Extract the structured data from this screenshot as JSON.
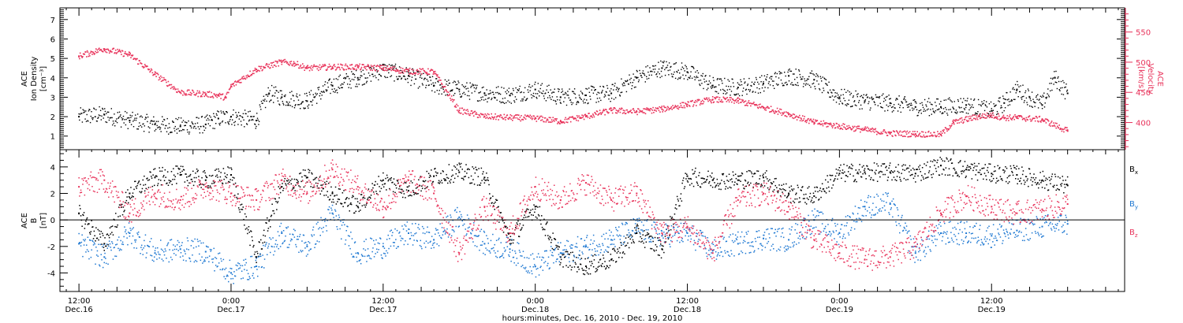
{
  "colors": {
    "density": "#000000",
    "velocity": "#e8325a",
    "bx": "#000000",
    "by": "#1e78d2",
    "bz": "#e8325a",
    "frame": "#000000",
    "background": "#ffffff"
  },
  "chart_data": [
    {
      "type": "scatter",
      "panel": "top",
      "x_range_hours": [
        -1.5,
        82.5
      ],
      "x_origin": "Dec. 16, 2010 12:00",
      "left_axis": {
        "label_lines": [
          "ACE",
          "Ion Density"
        ],
        "unit": "[cm⁻³]",
        "ylim": [
          0.3,
          7.6
        ],
        "ticks": [
          "1",
          "2",
          "3",
          "4",
          "5",
          "6",
          "7"
        ]
      },
      "right_axis": {
        "label_lines": [
          "ACE",
          "Velocity"
        ],
        "unit": "[km/s]",
        "ylim": [
          355,
          590
        ],
        "ticks": [
          "400",
          "450",
          "500",
          "550"
        ]
      },
      "series": [
        {
          "key": "density",
          "color": "#000000",
          "x": [
            0,
            2,
            4,
            6,
            8,
            10,
            11,
            12,
            14,
            15,
            16,
            18,
            20,
            22,
            24,
            26,
            28,
            30,
            32,
            34,
            36,
            38,
            40,
            42,
            44,
            46,
            48,
            50,
            52,
            54,
            56,
            58,
            60,
            62,
            64,
            66,
            68,
            70,
            72,
            73,
            74,
            75,
            76,
            77,
            78
          ],
          "y": [
            2.0,
            2.1,
            1.8,
            1.6,
            1.5,
            1.6,
            1.9,
            2.0,
            1.8,
            3.2,
            3.0,
            2.8,
            3.6,
            4.0,
            4.4,
            4.1,
            3.6,
            3.4,
            3.2,
            3.1,
            3.4,
            3.0,
            3.1,
            3.2,
            4.0,
            4.5,
            4.3,
            3.6,
            3.5,
            3.7,
            4.1,
            3.9,
            3.0,
            2.8,
            2.7,
            2.5,
            2.5,
            2.6,
            2.3,
            2.7,
            3.4,
            3.0,
            2.6,
            4.0,
            3.2
          ]
        },
        {
          "key": "velocity",
          "color": "#e8325a",
          "x": [
            0,
            2,
            4,
            6,
            8,
            10,
            11,
            11.6,
            12,
            14,
            16,
            17,
            18,
            20,
            22,
            24,
            26,
            28,
            30,
            32,
            34,
            36,
            38,
            40,
            42,
            44,
            46,
            48,
            50,
            52,
            54,
            56,
            58,
            60,
            62,
            64,
            66,
            68,
            69,
            71,
            72,
            73,
            74,
            76,
            78
          ],
          "y": [
            510,
            522,
            512,
            480,
            450,
            447,
            445,
            441,
            460,
            488,
            500,
            498,
            490,
            492,
            492,
            490,
            485,
            484,
            420,
            410,
            408,
            407,
            402,
            410,
            420,
            418,
            422,
            430,
            438,
            436,
            425,
            414,
            400,
            394,
            388,
            382,
            381,
            380,
            400,
            410,
            412,
            408,
            408,
            405,
            386
          ]
        }
      ]
    },
    {
      "type": "scatter",
      "panel": "bottom",
      "x_range_hours": [
        -1.5,
        82.5
      ],
      "y_axis": {
        "label_lines": [
          "ACE",
          "B"
        ],
        "unit": "[nT]",
        "ylim": [
          -5.4,
          5.3
        ],
        "ticks": [
          "-4",
          "-2",
          "0",
          "2",
          "4"
        ]
      },
      "legend_placement": "right",
      "series": [
        {
          "name": "B",
          "sub": "x",
          "key": "bx",
          "color": "#000000",
          "x": [
            0,
            2,
            4,
            6,
            8,
            10,
            12,
            14,
            16,
            18,
            20,
            22,
            24,
            26,
            28,
            30,
            32,
            34,
            36,
            38,
            40,
            42,
            44,
            46,
            48,
            50,
            52,
            54,
            56,
            58,
            60,
            62,
            64,
            66,
            68,
            70,
            72,
            74,
            76,
            78
          ],
          "y": [
            0.5,
            -1.8,
            2.0,
            3.2,
            3.4,
            3.0,
            3.4,
            -2.8,
            2.5,
            3.2,
            2.0,
            1.0,
            3.0,
            2.2,
            3.3,
            3.6,
            3.2,
            -1.5,
            1.0,
            -2.8,
            -3.5,
            -3.0,
            -1.0,
            -2.2,
            3.3,
            3.0,
            3.0,
            3.2,
            2.0,
            1.8,
            3.5,
            3.6,
            3.6,
            3.5,
            4.1,
            3.8,
            3.5,
            3.4,
            3.0,
            2.6
          ]
        },
        {
          "name": "B",
          "sub": "y",
          "key": "by",
          "color": "#1e78d2",
          "x": [
            0,
            2,
            4,
            6,
            8,
            10,
            12,
            14,
            16,
            18,
            20,
            22,
            24,
            26,
            28,
            30,
            32,
            34,
            36,
            38,
            40,
            42,
            44,
            46,
            48,
            50,
            52,
            54,
            56,
            58,
            60,
            62,
            64,
            66,
            68,
            70,
            72,
            74,
            76,
            78
          ],
          "y": [
            -1.8,
            -2.8,
            -1.0,
            -2.5,
            -2.2,
            -2.4,
            -4.0,
            -3.5,
            -1.0,
            -2.0,
            0.5,
            -2.5,
            -2.0,
            -1.0,
            -1.5,
            0.2,
            -1.8,
            -2.2,
            -3.5,
            -2.5,
            -2.0,
            -1.5,
            -0.6,
            -1.2,
            -1.0,
            -2.3,
            -1.8,
            -1.4,
            -1.5,
            0.0,
            -1.0,
            1.0,
            1.2,
            -2.5,
            -1.0,
            -1.0,
            -1.2,
            -0.8,
            -0.5,
            -0.3
          ]
        },
        {
          "name": "B",
          "sub": "z",
          "key": "bz",
          "color": "#e8325a",
          "x": [
            0,
            2,
            4,
            6,
            8,
            10,
            12,
            14,
            16,
            18,
            20,
            22,
            24,
            26,
            28,
            30,
            32,
            34,
            36,
            38,
            40,
            42,
            44,
            46,
            48,
            50,
            52,
            54,
            56,
            58,
            60,
            62,
            64,
            66,
            68,
            70,
            72,
            74,
            76,
            78
          ],
          "y": [
            2.5,
            3.0,
            0.5,
            2.0,
            1.5,
            2.5,
            2.0,
            1.5,
            3.0,
            2.0,
            3.8,
            2.5,
            1.0,
            3.0,
            2.0,
            -2.5,
            1.0,
            -1.0,
            2.5,
            1.5,
            2.8,
            1.5,
            2.0,
            -1.0,
            -0.5,
            -2.5,
            1.5,
            2.0,
            1.0,
            -1.5,
            -2.5,
            -3.0,
            -2.8,
            -2.0,
            0.5,
            1.8,
            1.0,
            0.5,
            0.8,
            1.2
          ]
        }
      ]
    }
  ],
  "time_axis": {
    "ticks": [
      {
        "hour": 0,
        "time": "12:00",
        "date": "Dec.16"
      },
      {
        "hour": 12,
        "time": "0:00",
        "date": "Dec.17"
      },
      {
        "hour": 24,
        "time": "12:00",
        "date": "Dec.17"
      },
      {
        "hour": 36,
        "time": "0:00",
        "date": "Dec.18"
      },
      {
        "hour": 48,
        "time": "12:00",
        "date": "Dec.18"
      },
      {
        "hour": 60,
        "time": "0:00",
        "date": "Dec.19"
      },
      {
        "hour": 72,
        "time": "12:00",
        "date": "Dec.19"
      }
    ],
    "xlabel": "hours:minutes, Dec. 16, 2010 - Dec. 19, 2010"
  }
}
